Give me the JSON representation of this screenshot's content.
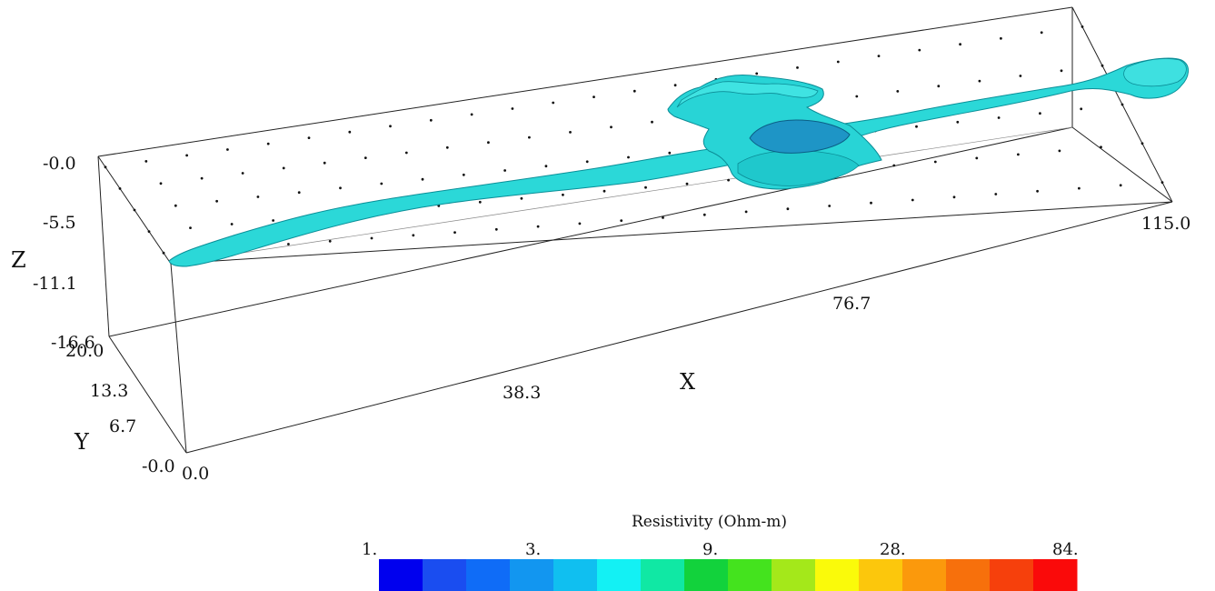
{
  "axes": {
    "z": {
      "title": "Z",
      "ticks": [
        "-0.0",
        "-5.5",
        "-11.1",
        "-16.6"
      ]
    },
    "y": {
      "title": "Y",
      "ticks": [
        "20.0",
        "13.3",
        "6.7",
        "-0.0"
      ]
    },
    "x": {
      "title": "X",
      "ticks": [
        "0.0",
        "38.3",
        "76.7",
        "115.0"
      ]
    }
  },
  "colorbar": {
    "title": "Resistivity (Ohm-m)",
    "tick_labels": [
      "1.",
      "3.",
      "9.",
      "28.",
      "84."
    ],
    "colors": [
      "#0000ee",
      "#1a4df0",
      "#0f6cf7",
      "#1296f0",
      "#10bff0",
      "#13f1f4",
      "#10e8a4",
      "#12d23c",
      "#44e31e",
      "#a4e81a",
      "#fafa0a",
      "#fcc70c",
      "#fb990c",
      "#f7700c",
      "#f6400c",
      "#fa0a0a"
    ]
  },
  "isosurface": {
    "color": "#22d6d6",
    "core_color": "#1e95c6"
  }
}
